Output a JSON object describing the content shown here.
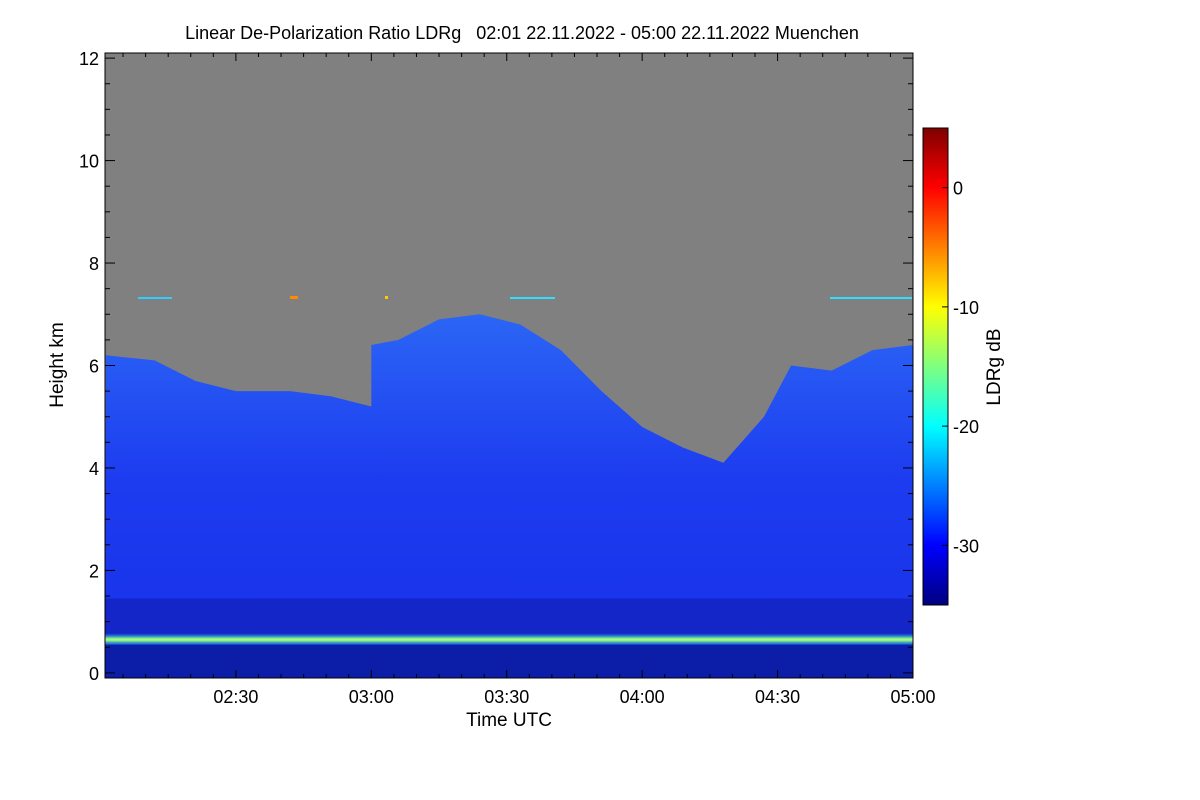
{
  "chart_data": {
    "type": "heatmap",
    "title": "Linear De-Polarization Ratio LDRg   02:01 22.11.2022 - 05:00 22.11.2022 Muenchen",
    "xlabel": "Time UTC",
    "ylabel": "Height km",
    "colorbar_label": "LDRg dB",
    "x_ticks": [
      "02:30",
      "03:00",
      "03:30",
      "04:00",
      "04:30",
      "05:00"
    ],
    "x_tick_hours": [
      2.5,
      3.0,
      3.5,
      4.0,
      4.5,
      5.0
    ],
    "x_range_hours": [
      2.0167,
      5.0
    ],
    "y_ticks": [
      "0",
      "2",
      "4",
      "6",
      "8",
      "10",
      "12"
    ],
    "y_tick_values": [
      0,
      2,
      4,
      6,
      8,
      10,
      12
    ],
    "ylim": [
      -0.1,
      12.1
    ],
    "colorbar_ticks": [
      "0",
      "-10",
      "-20",
      "-30"
    ],
    "colorbar_values": [
      0,
      -10,
      -20,
      -30
    ],
    "colorbar_range": [
      -35,
      5
    ],
    "background_color": "#808080",
    "aerosol_layer_height_km": 0.65,
    "signal_top_km": [
      [
        2.02,
        6.2
      ],
      [
        2.2,
        6.1
      ],
      [
        2.35,
        5.7
      ],
      [
        2.5,
        5.5
      ],
      [
        2.7,
        5.5
      ],
      [
        2.85,
        5.4
      ],
      [
        3.0,
        5.2
      ],
      [
        3.0,
        6.4
      ],
      [
        3.1,
        6.5
      ],
      [
        3.25,
        6.9
      ],
      [
        3.4,
        7.0
      ],
      [
        3.55,
        6.8
      ],
      [
        3.7,
        6.3
      ],
      [
        3.85,
        5.5
      ],
      [
        4.0,
        4.8
      ],
      [
        4.15,
        4.4
      ],
      [
        4.3,
        4.1
      ],
      [
        4.45,
        5.0
      ],
      [
        4.55,
        6.0
      ],
      [
        4.7,
        5.9
      ],
      [
        4.85,
        6.3
      ],
      [
        5.0,
        6.4
      ]
    ]
  }
}
